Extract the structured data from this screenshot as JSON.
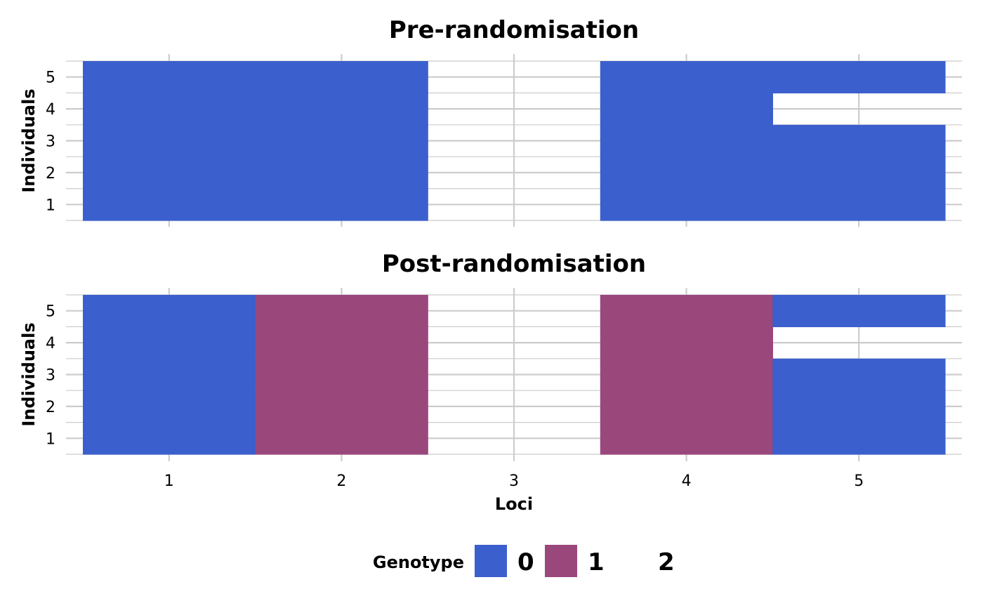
{
  "chart_data": [
    {
      "type": "heatmap",
      "title": "Pre-randomisation",
      "xlabel": "",
      "ylabel": "Individuals",
      "x_categories": [
        "1",
        "2",
        "3",
        "4",
        "5"
      ],
      "y_categories": [
        "1",
        "2",
        "3",
        "4",
        "5"
      ],
      "cells": [
        [
          0,
          0,
          null,
          0,
          0
        ],
        [
          0,
          0,
          null,
          0,
          0
        ],
        [
          0,
          0,
          null,
          0,
          0
        ],
        [
          0,
          0,
          null,
          0,
          null
        ],
        [
          0,
          0,
          null,
          0,
          0
        ]
      ],
      "show_x_tick_labels": false,
      "grid": true
    },
    {
      "type": "heatmap",
      "title": "Post-randomisation",
      "xlabel": "Loci",
      "ylabel": "Individuals",
      "x_categories": [
        "1",
        "2",
        "3",
        "4",
        "5"
      ],
      "y_categories": [
        "1",
        "2",
        "3",
        "4",
        "5"
      ],
      "cells": [
        [
          0,
          1,
          null,
          1,
          0
        ],
        [
          0,
          1,
          null,
          1,
          0
        ],
        [
          0,
          1,
          null,
          1,
          0
        ],
        [
          0,
          1,
          null,
          1,
          null
        ],
        [
          0,
          1,
          null,
          1,
          0
        ]
      ],
      "show_x_tick_labels": true,
      "grid": true
    }
  ],
  "legend": {
    "title": "Genotype",
    "placement": "bottom",
    "entries": [
      {
        "label": "0",
        "value": 0,
        "color": "#3B5FCC"
      },
      {
        "label": "1",
        "value": 1,
        "color": "#9A477C"
      },
      {
        "label": "2",
        "value": 2,
        "color": "#FFFFFF"
      }
    ]
  },
  "colors": {
    "grid": "#CCCCCC",
    "tick": "#CCCCCC"
  }
}
